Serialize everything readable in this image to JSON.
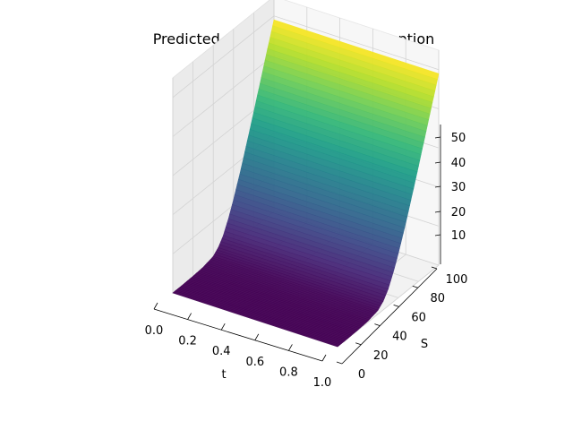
{
  "chart_data": {
    "type": "surface3d",
    "title": "Predicted value to European call option",
    "xlabel": "t",
    "ylabel": "S",
    "zlabel": "",
    "xlim": [
      0,
      1
    ],
    "ylim": [
      0,
      100
    ],
    "zlim": [
      0,
      55
    ],
    "x_ticks": [
      "0.0",
      "0.2",
      "0.4",
      "0.6",
      "0.8",
      "1.0"
    ],
    "y_ticks": [
      "0",
      "20",
      "40",
      "60",
      "80",
      "100"
    ],
    "z_ticks": [
      "10",
      "20",
      "30",
      "40",
      "50"
    ],
    "colormap": "viridis",
    "grid": true,
    "surface": {
      "S": [
        0,
        10,
        20,
        30,
        40,
        45,
        50,
        55,
        60,
        65,
        70,
        80,
        90,
        100
      ],
      "V": [
        0,
        0,
        0.1,
        0.3,
        1.0,
        2.2,
        4.3,
        7.5,
        11.3,
        15.5,
        20,
        29.5,
        39.3,
        49
      ]
    }
  }
}
